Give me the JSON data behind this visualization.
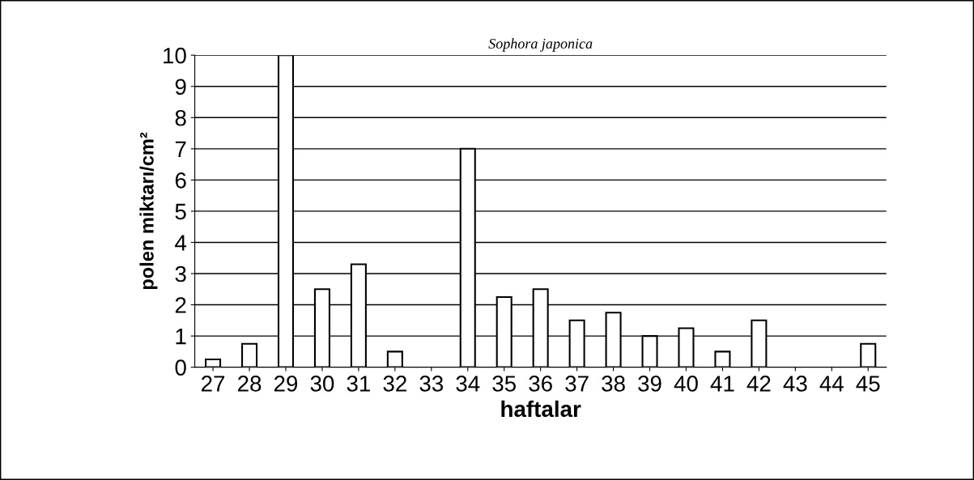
{
  "chart_data": {
    "type": "bar",
    "title": "Sophora japonica",
    "xlabel": "haftalar",
    "ylabel": "polen miktarı/cm²",
    "categories": [
      "27",
      "28",
      "29",
      "30",
      "31",
      "32",
      "33",
      "34",
      "35",
      "36",
      "37",
      "38",
      "39",
      "40",
      "41",
      "42",
      "43",
      "44",
      "45"
    ],
    "values": [
      0.25,
      0.75,
      10,
      2.5,
      3.3,
      0.5,
      0,
      7,
      2.25,
      2.5,
      1.5,
      1.75,
      1,
      1.25,
      0.5,
      1.5,
      0,
      0,
      0.75
    ],
    "color": "#ffffff",
    "ylim": [
      0,
      10
    ],
    "yticks": [
      0,
      1,
      2,
      3,
      4,
      5,
      6,
      7,
      8,
      9,
      10
    ],
    "grid": "y",
    "legend": false
  }
}
